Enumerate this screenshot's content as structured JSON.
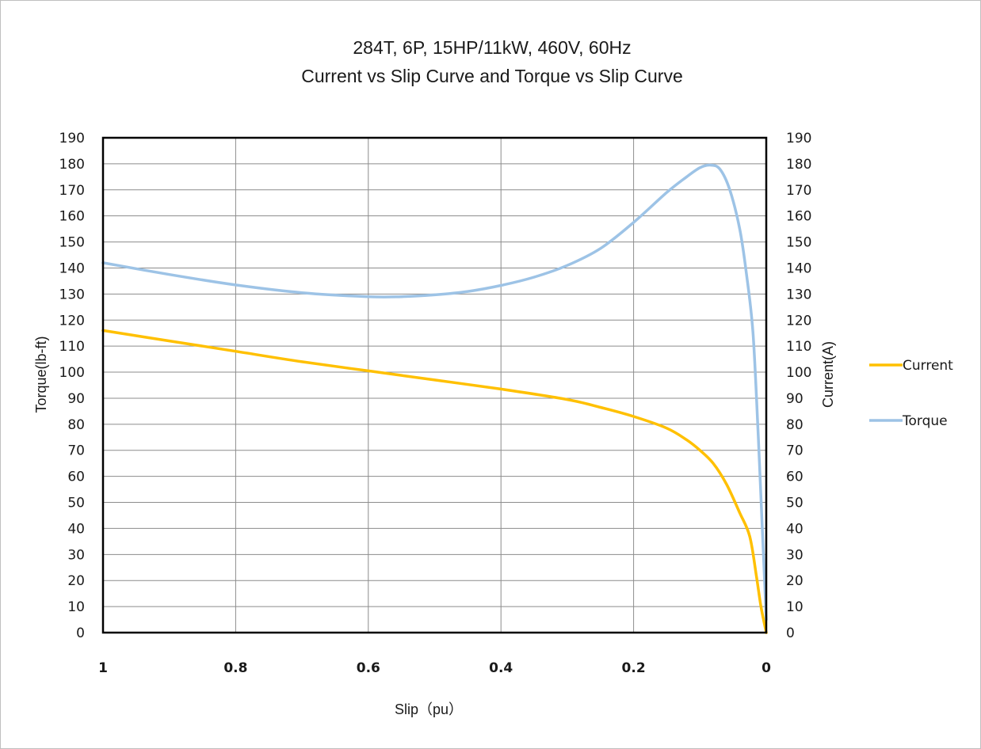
{
  "chart_data": {
    "type": "line",
    "title": "284T,  6P, 15HP/11kW, 460V, 60Hz",
    "subtitle": "Current vs Slip Curve and Torque vs Slip Curve",
    "xlabel": "Slip（pu）",
    "ylabel_left": "Torque(lb-ft)",
    "ylabel_right": "Current(A)",
    "xlim": [
      1,
      0
    ],
    "x_reversed": true,
    "ylim": [
      0,
      190
    ],
    "x_ticks": [
      "1",
      "0.8",
      "0.6",
      "0.4",
      "0.2",
      "0"
    ],
    "y_ticks": [
      "0",
      "10",
      "20",
      "30",
      "40",
      "50",
      "60",
      "70",
      "80",
      "90",
      "100",
      "110",
      "120",
      "130",
      "140",
      "150",
      "160",
      "170",
      "180",
      "190"
    ],
    "grid": true,
    "legend_position": "right",
    "series": [
      {
        "name": "Current",
        "color": "#ffc000",
        "axis": "right",
        "points": [
          [
            1.0,
            116
          ],
          [
            0.9,
            112
          ],
          [
            0.8,
            108
          ],
          [
            0.7,
            104
          ],
          [
            0.6,
            100.5
          ],
          [
            0.5,
            97
          ],
          [
            0.4,
            93.5
          ],
          [
            0.3,
            89.5
          ],
          [
            0.25,
            86.5
          ],
          [
            0.2,
            83
          ],
          [
            0.15,
            78.5
          ],
          [
            0.12,
            74
          ],
          [
            0.1,
            70
          ],
          [
            0.08,
            65
          ],
          [
            0.06,
            57
          ],
          [
            0.04,
            46
          ],
          [
            0.025,
            37
          ],
          [
            0.015,
            22
          ],
          [
            0.008,
            10
          ],
          [
            0.0,
            0
          ]
        ]
      },
      {
        "name": "Torque",
        "color": "#9dc3e6",
        "axis": "left",
        "points": [
          [
            1.0,
            142
          ],
          [
            0.9,
            137.5
          ],
          [
            0.8,
            133.5
          ],
          [
            0.7,
            130.5
          ],
          [
            0.6,
            129
          ],
          [
            0.55,
            129
          ],
          [
            0.5,
            129.7
          ],
          [
            0.45,
            131
          ],
          [
            0.4,
            133.3
          ],
          [
            0.35,
            136.5
          ],
          [
            0.3,
            141
          ],
          [
            0.25,
            147.5
          ],
          [
            0.2,
            157.5
          ],
          [
            0.15,
            169
          ],
          [
            0.12,
            175
          ],
          [
            0.1,
            178.5
          ],
          [
            0.085,
            179.5
          ],
          [
            0.07,
            178
          ],
          [
            0.055,
            170
          ],
          [
            0.04,
            155
          ],
          [
            0.03,
            138
          ],
          [
            0.02,
            115
          ],
          [
            0.012,
            75
          ],
          [
            0.006,
            40
          ],
          [
            0.0,
            5
          ]
        ]
      }
    ]
  }
}
